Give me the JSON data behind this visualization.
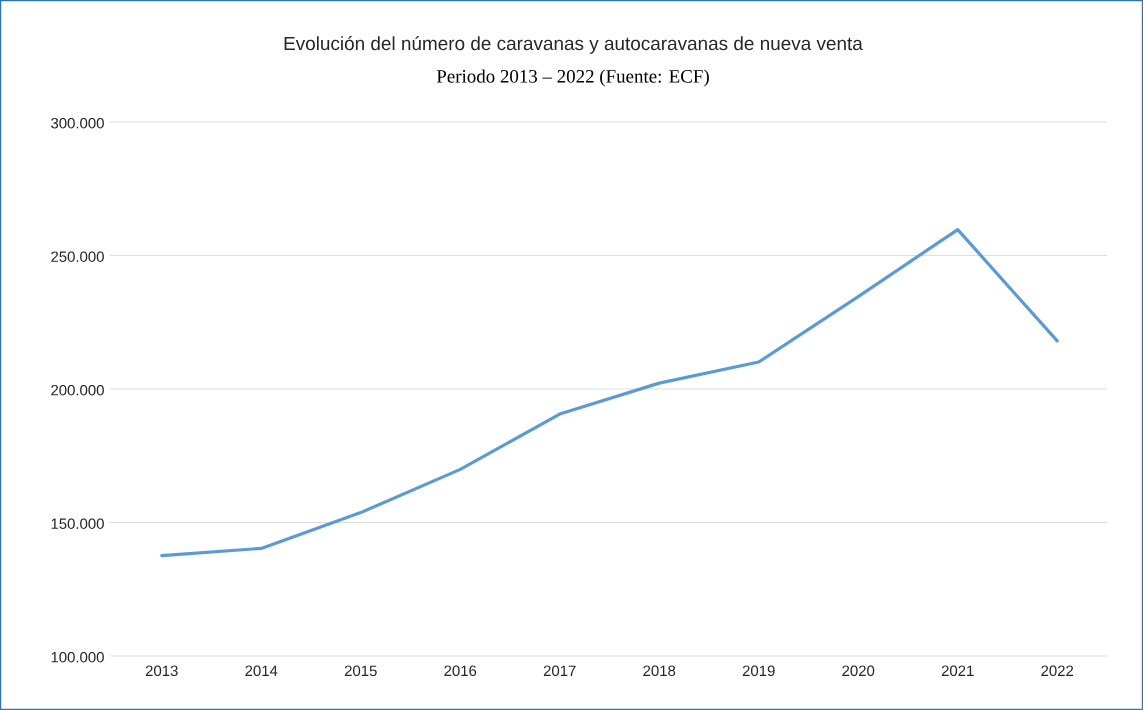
{
  "chart_data": {
    "type": "line",
    "title": "Evolución del número de caravanas y autocaravanas de nueva venta",
    "subtitle": "Periodo 2013 – 2022 (Fuente: ECF)",
    "categories": [
      "2013",
      "2014",
      "2015",
      "2016",
      "2017",
      "2018",
      "2019",
      "2020",
      "2021",
      "2022"
    ],
    "series": [
      {
        "color": "#5b9bd5",
        "values": [
          137600,
          140300,
          153700,
          169900,
          190600,
          202200,
          210100,
          234600,
          259700,
          218000
        ]
      }
    ],
    "ylim": [
      100000,
      300000
    ],
    "yticks": [
      {
        "value": 100000,
        "label": "100.000"
      },
      {
        "value": 150000,
        "label": "150.000"
      },
      {
        "value": 200000,
        "label": "200.000"
      },
      {
        "value": 250000,
        "label": "250.000"
      },
      {
        "value": 300000,
        "label": "300.000"
      }
    ],
    "grid": "y",
    "marker": "none",
    "line_style": "solid"
  }
}
